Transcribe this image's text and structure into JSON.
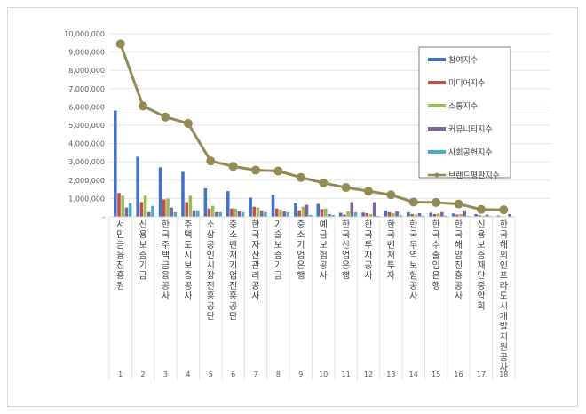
{
  "chart_data": {
    "type": "bar",
    "title": "",
    "xlabel": "",
    "ylabel": "",
    "ylim": [
      0,
      10000000
    ],
    "ytick_labels": [
      "-",
      "1,000,000",
      "2,000,000",
      "3,000,000",
      "4,000,000",
      "5,000,000",
      "6,000,000",
      "7,000,000",
      "8,000,000",
      "9,000,000",
      "10,000,000"
    ],
    "grid": true,
    "legend_position": "right-top",
    "x_numbers": [
      "1",
      "2",
      "3",
      "4",
      "5",
      "6",
      "7",
      "8",
      "9",
      "10",
      "11",
      "12",
      "13",
      "14",
      "15",
      "16",
      "17",
      "18"
    ],
    "categories": [
      "서민금융진흥원",
      "신용보증기금",
      "한국주택금융공사",
      "주택도시보증공사",
      "소상공인시장진흥공단",
      "중소벤처기업진흥공단",
      "한국자산관리공사",
      "기술보증기금",
      "중소기업은행",
      "예금보험공사",
      "한국산업은행",
      "한국투자공사",
      "한국벤처투자",
      "한국무역보험공사",
      "한국수출입은행",
      "한국해양진흥공사",
      "신용보증재단중앙회",
      "한국해외인프라도시개발지원공사"
    ],
    "series": [
      {
        "name": "참여지수",
        "type": "bar",
        "color": "#4472C4",
        "values": [
          5800000,
          3280000,
          2700000,
          2450000,
          1550000,
          1400000,
          1050000,
          1200000,
          750000,
          700000,
          220000,
          230000,
          350000,
          250000,
          220000,
          180000,
          150000,
          70000
        ]
      },
      {
        "name": "미디어지수",
        "type": "bar",
        "color": "#C0504D",
        "values": [
          1300000,
          800000,
          950000,
          800000,
          450000,
          450000,
          550000,
          450000,
          350000,
          420000,
          120000,
          200000,
          250000,
          150000,
          150000,
          120000,
          80000,
          30000
        ]
      },
      {
        "name": "소통지수",
        "type": "bar",
        "color": "#9BBB59",
        "values": [
          1150000,
          1150000,
          1000000,
          1150000,
          600000,
          450000,
          500000,
          400000,
          550000,
          450000,
          300000,
          150000,
          200000,
          120000,
          180000,
          150000,
          60000,
          20000
        ]
      },
      {
        "name": "커뮤니티지수",
        "type": "bar",
        "color": "#8064A2",
        "values": [
          500000,
          250000,
          500000,
          350000,
          250000,
          300000,
          350000,
          300000,
          650000,
          150000,
          800000,
          800000,
          300000,
          200000,
          250000,
          350000,
          120000,
          150000
        ]
      },
      {
        "name": "사회공헌지수",
        "type": "bar",
        "color": "#4BACC6",
        "values": [
          750000,
          600000,
          250000,
          350000,
          250000,
          250000,
          250000,
          250000,
          100000,
          100000,
          250000,
          50000,
          80000,
          50000,
          60000,
          50000,
          40000,
          30000
        ]
      },
      {
        "name": "브랜드평판지수",
        "type": "line",
        "color": "#948A54",
        "values": [
          9450000,
          6050000,
          5450000,
          5100000,
          3050000,
          2750000,
          2550000,
          2500000,
          2150000,
          1850000,
          1600000,
          1400000,
          1200000,
          800000,
          780000,
          700000,
          400000,
          380000
        ]
      }
    ]
  },
  "legend": {
    "items": [
      {
        "label": "참여지수",
        "color": "#4472C4",
        "kind": "bar"
      },
      {
        "label": "미디어지수",
        "color": "#C0504D",
        "kind": "bar"
      },
      {
        "label": "소통지수",
        "color": "#9BBB59",
        "kind": "bar"
      },
      {
        "label": "커뮤니티지수",
        "color": "#8064A2",
        "kind": "bar"
      },
      {
        "label": "사회공헌지수",
        "color": "#4BACC6",
        "kind": "bar"
      },
      {
        "label": "브랜드평판지수",
        "color": "#948A54",
        "kind": "line"
      }
    ]
  }
}
